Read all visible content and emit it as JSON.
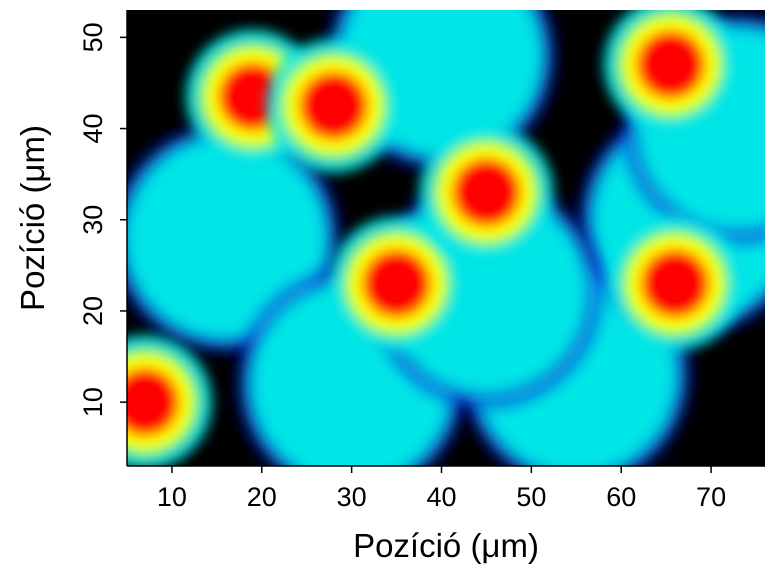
{
  "chart_data": {
    "type": "heatmap",
    "title": "",
    "xlabel": "Pozíció (μm)",
    "ylabel": "Pozíció (μm)",
    "xlim": [
      5,
      76
    ],
    "ylim": [
      3,
      53
    ],
    "xticks": [
      10,
      20,
      30,
      40,
      50,
      60,
      70
    ],
    "yticks": [
      10,
      20,
      30,
      40,
      50
    ],
    "legend": "none",
    "grid": false,
    "colormap": [
      "#000000",
      "#0a18d8",
      "#00e6e6",
      "#ffff00",
      "#ff0000"
    ],
    "hotspots": [
      {
        "x": 19,
        "y": 43.5,
        "value": 1.0
      },
      {
        "x": 28,
        "y": 42.5,
        "value": 1.0
      },
      {
        "x": 35,
        "y": 23,
        "value": 1.0
      },
      {
        "x": 45,
        "y": 33,
        "value": 1.0
      },
      {
        "x": 66,
        "y": 23,
        "value": 1.0
      },
      {
        "x": 65.5,
        "y": 47,
        "value": 1.0
      },
      {
        "x": 7,
        "y": 10,
        "value": 1.0
      }
    ],
    "background_regions": [
      {
        "x": 16,
        "y": 28,
        "value": 0.5
      },
      {
        "x": 40,
        "y": 48,
        "value": 0.5
      },
      {
        "x": 30,
        "y": 12,
        "value": 0.5
      },
      {
        "x": 55,
        "y": 13,
        "value": 0.5
      },
      {
        "x": 68,
        "y": 30,
        "value": 0.5
      },
      {
        "x": 73,
        "y": 40,
        "value": 0.5
      },
      {
        "x": 45,
        "y": 22,
        "value": 0.5
      }
    ]
  }
}
